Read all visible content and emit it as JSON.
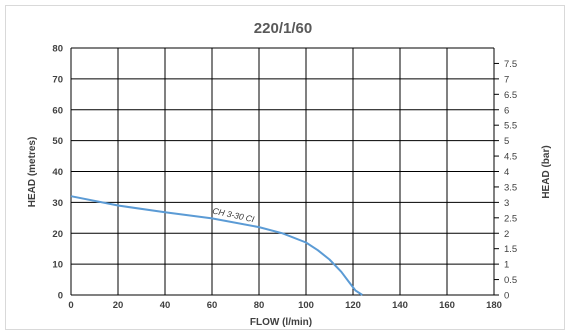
{
  "chart_data": {
    "type": "line",
    "title": "220/1/60",
    "xlabel": "FLOW (l/min)",
    "ylabel": "HEAD (metres)",
    "y2label": "HEAD (bar)",
    "xlim": [
      0,
      180
    ],
    "ylim": [
      0,
      80
    ],
    "y2lim": [
      0,
      8
    ],
    "x_ticks": [
      "0",
      "20",
      "40",
      "60",
      "80",
      "100",
      "120",
      "140",
      "160",
      "180"
    ],
    "y_ticks": [
      "0",
      "10",
      "20",
      "30",
      "40",
      "50",
      "60",
      "70",
      "80"
    ],
    "y2_ticks": [
      "0",
      "0.5",
      "1",
      "1.5",
      "2",
      "2.5",
      "3",
      "3.5",
      "4",
      "4.5",
      "5",
      "5.5",
      "6",
      "6.5",
      "7",
      "7.5"
    ],
    "grid": true,
    "series": [
      {
        "name": "CH 3-30 CI",
        "color": "#5b9bd5",
        "x": [
          0,
          20,
          40,
          60,
          80,
          90,
          100,
          105,
          110,
          115,
          118,
          121,
          124
        ],
        "y": [
          32,
          29,
          26.8,
          24.8,
          22,
          20,
          17,
          14.5,
          11.5,
          7.5,
          4.5,
          1.5,
          0
        ]
      }
    ]
  }
}
